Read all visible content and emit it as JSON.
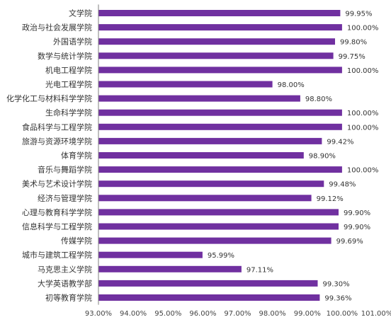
{
  "chart_data": {
    "type": "bar",
    "orientation": "horizontal",
    "title": "",
    "xlabel": "",
    "ylabel": "",
    "xlim": [
      93,
      101
    ],
    "ticks": [
      93,
      94,
      95,
      96,
      97,
      98,
      99,
      100,
      101
    ],
    "tick_labels": [
      "93.00%",
      "94.00%",
      "95.00%",
      "96.00%",
      "97.00%",
      "98.00%",
      "99.00%",
      "100.00%",
      "101.00%"
    ],
    "categories": [
      "文学院",
      "政治与社会发展学院",
      "外国语学院",
      "数学与统计学院",
      "机电工程学院",
      "光电工程学院",
      "化学化工与材料科学学院",
      "生命科学学院",
      "食品科学与工程学院",
      "旅游与资源环境学院",
      "体育学院",
      "音乐与舞蹈学院",
      "美术与艺术设计学院",
      "经济与管理学院",
      "心理与教育科学学院",
      "信息科学与工程学院",
      "传媒学院",
      "城市与建筑工程学院",
      "马克思主义学院",
      "大学英语教学部",
      "初等教育学院"
    ],
    "values": [
      99.95,
      100.0,
      99.8,
      99.75,
      100.0,
      98.0,
      98.8,
      100.0,
      100.0,
      99.42,
      98.9,
      100.0,
      99.48,
      99.12,
      99.9,
      99.9,
      99.69,
      95.99,
      97.11,
      99.3,
      99.36
    ],
    "value_labels": [
      "99.95%",
      "100.00%",
      "99.80%",
      "99.75%",
      "100.00%",
      "98.00%",
      "98.80%",
      "100.00%",
      "100.00%",
      "99.42%",
      "98.90%",
      "100.00%",
      "99.48%",
      "99.12%",
      "99.90%",
      "99.90%",
      "99.69%",
      "95.99%",
      "97.11%",
      "99.30%",
      "99.36%"
    ],
    "bar_color": "#7030a0",
    "grid": false,
    "legend": "none"
  }
}
